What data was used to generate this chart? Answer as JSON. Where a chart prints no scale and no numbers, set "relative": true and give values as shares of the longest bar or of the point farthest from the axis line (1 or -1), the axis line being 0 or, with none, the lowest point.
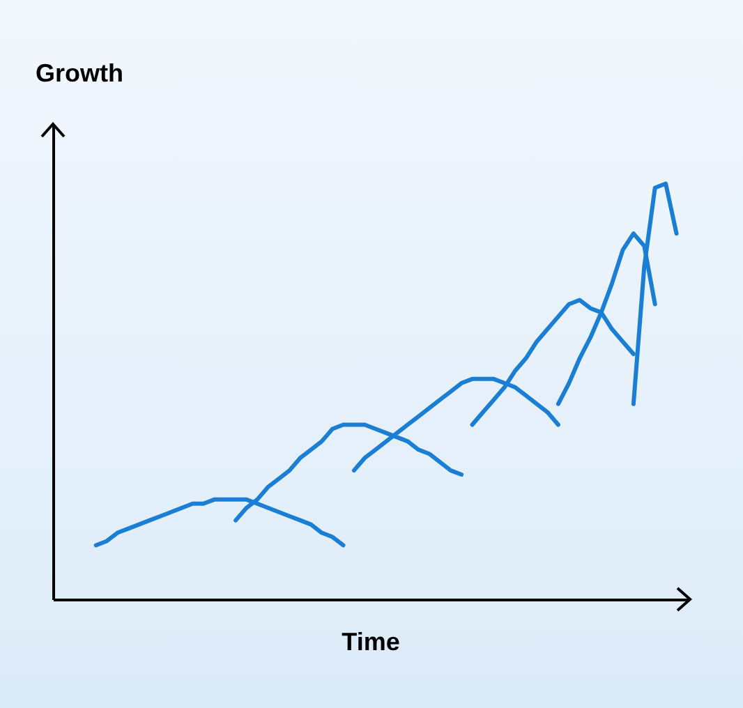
{
  "chart_data": {
    "type": "line",
    "relative": true,
    "ylabel": "Growth",
    "xlabel": "Time",
    "tick_labels": false,
    "grid": false,
    "legend": false,
    "marker": "none",
    "line_style": "solid",
    "categories": [
      null,
      null,
      null,
      null,
      null,
      null,
      null,
      null,
      null,
      null,
      null,
      null,
      null,
      null,
      null,
      null,
      null,
      null,
      null,
      null,
      null,
      null,
      null,
      null,
      null,
      null,
      null,
      null,
      null,
      null,
      null,
      null,
      null,
      null,
      null,
      null,
      null,
      null,
      null,
      null,
      null,
      null,
      null,
      null,
      null,
      null,
      null,
      null,
      null,
      null,
      null,
      null,
      null,
      null,
      null,
      null,
      null,
      null,
      null,
      null
    ],
    "series": [
      {
        "color": "#1a7fd4",
        "values": [
          null,
          null,
          null,
          null,
          0.13,
          0.14,
          0.16,
          0.17,
          0.18,
          0.19,
          0.2,
          0.21,
          0.22,
          0.23,
          0.23,
          0.24,
          0.24,
          0.24,
          0.24,
          0.23,
          0.22,
          0.21,
          0.2,
          0.19,
          0.18,
          0.16,
          0.15,
          0.13,
          null,
          null,
          null,
          null,
          null,
          null,
          null,
          null,
          null,
          null,
          null,
          null,
          null,
          null,
          null,
          null,
          null,
          null,
          null,
          null,
          null,
          null,
          null,
          null,
          null,
          null,
          null,
          null,
          null,
          null,
          null,
          null
        ]
      },
      {
        "color": "#1a7fd4",
        "values": [
          null,
          null,
          null,
          null,
          null,
          null,
          null,
          null,
          null,
          null,
          null,
          null,
          null,
          null,
          null,
          null,
          null,
          0.19,
          0.22,
          0.24,
          0.27,
          0.29,
          0.31,
          0.34,
          0.36,
          0.38,
          0.41,
          0.42,
          0.42,
          0.42,
          0.41,
          0.4,
          0.39,
          0.38,
          0.36,
          0.35,
          0.33,
          0.31,
          0.3,
          null,
          null,
          null,
          null,
          null,
          null,
          null,
          null,
          null,
          null,
          null,
          null,
          null,
          null,
          null,
          null,
          null,
          null,
          null,
          null,
          null
        ]
      },
      {
        "color": "#1a7fd4",
        "values": [
          null,
          null,
          null,
          null,
          null,
          null,
          null,
          null,
          null,
          null,
          null,
          null,
          null,
          null,
          null,
          null,
          null,
          null,
          null,
          null,
          null,
          null,
          null,
          null,
          null,
          null,
          null,
          null,
          0.31,
          0.34,
          0.36,
          0.38,
          0.4,
          0.42,
          0.44,
          0.46,
          0.48,
          0.5,
          0.52,
          0.53,
          0.53,
          0.53,
          0.52,
          0.51,
          0.49,
          0.47,
          0.45,
          0.42,
          null,
          null,
          null,
          null,
          null,
          null,
          null,
          null,
          null,
          null,
          null,
          null
        ]
      },
      {
        "color": "#1a7fd4",
        "values": [
          null,
          null,
          null,
          null,
          null,
          null,
          null,
          null,
          null,
          null,
          null,
          null,
          null,
          null,
          null,
          null,
          null,
          null,
          null,
          null,
          null,
          null,
          null,
          null,
          null,
          null,
          null,
          null,
          null,
          null,
          null,
          null,
          null,
          null,
          null,
          null,
          null,
          null,
          null,
          0.42,
          0.45,
          0.48,
          0.51,
          0.55,
          0.58,
          0.62,
          0.65,
          0.68,
          0.71,
          0.72,
          0.7,
          0.69,
          0.65,
          0.62,
          0.59,
          null,
          null,
          null,
          null,
          null
        ]
      },
      {
        "color": "#1a7fd4",
        "values": [
          null,
          null,
          null,
          null,
          null,
          null,
          null,
          null,
          null,
          null,
          null,
          null,
          null,
          null,
          null,
          null,
          null,
          null,
          null,
          null,
          null,
          null,
          null,
          null,
          null,
          null,
          null,
          null,
          null,
          null,
          null,
          null,
          null,
          null,
          null,
          null,
          null,
          null,
          null,
          null,
          null,
          null,
          null,
          null,
          null,
          null,
          null,
          0.47,
          0.52,
          0.58,
          0.63,
          0.69,
          0.76,
          0.84,
          0.88,
          0.85,
          0.71,
          null,
          null,
          null
        ]
      },
      {
        "color": "#1a7fd4",
        "values": [
          null,
          null,
          null,
          null,
          null,
          null,
          null,
          null,
          null,
          null,
          null,
          null,
          null,
          null,
          null,
          null,
          null,
          null,
          null,
          null,
          null,
          null,
          null,
          null,
          null,
          null,
          null,
          null,
          null,
          null,
          null,
          null,
          null,
          null,
          null,
          null,
          null,
          null,
          null,
          null,
          null,
          null,
          null,
          null,
          null,
          null,
          null,
          null,
          null,
          null,
          null,
          null,
          null,
          null,
          0.47,
          0.8,
          0.99,
          1,
          0.88,
          null
        ]
      }
    ]
  }
}
